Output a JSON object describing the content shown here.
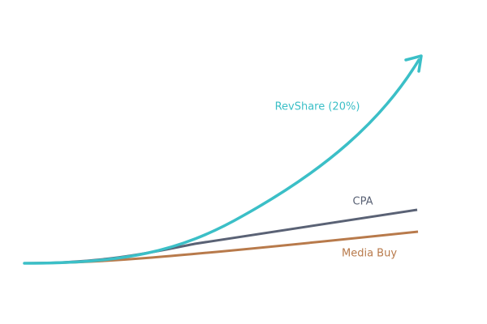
{
  "labels": {
    "revshare": "RevShare (20%)",
    "cpa": "CPA",
    "media_buy": "Media Buy"
  }
}
